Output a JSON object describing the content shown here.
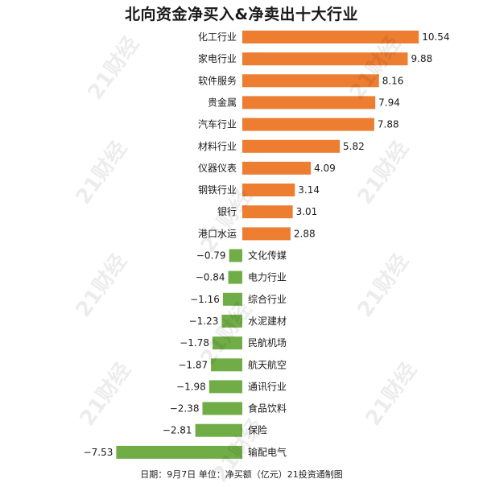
{
  "chart_data": {
    "type": "bar",
    "orientation": "horizontal",
    "title": "北向资金净买入&净卖出十大行业",
    "categories": [
      "化工行业",
      "家电行业",
      "软件服务",
      "贵金属",
      "汽车行业",
      "材料行业",
      "仪器仪表",
      "钢铁行业",
      "银行",
      "港口水运",
      "文化传媒",
      "电力行业",
      "综合行业",
      "水泥建材",
      "民航机场",
      "航天航空",
      "通讯行业",
      "食品饮料",
      "保险",
      "输配电气"
    ],
    "values": [
      10.54,
      9.88,
      8.16,
      7.94,
      7.88,
      5.82,
      4.09,
      3.14,
      3.01,
      2.88,
      -0.79,
      -0.84,
      -1.16,
      -1.23,
      -1.78,
      -1.87,
      -1.98,
      -2.38,
      -2.81,
      -7.53
    ],
    "value_labels": [
      "10.54",
      "9.88",
      "8.16",
      "7.94",
      "7.88",
      "5.82",
      "4.09",
      "3.14",
      "3.01",
      "2.88",
      "−0.79",
      "−0.84",
      "−1.16",
      "−1.23",
      "−1.78",
      "−1.87",
      "−1.98",
      "−2.38",
      "−2.81",
      "−7.53"
    ],
    "colors": {
      "positive": "#ED7D31",
      "negative": "#70AD47"
    },
    "xlim": [
      -7.53,
      10.54
    ],
    "footer": "日期：9月7日 单位：净买额（亿元）21投资通制图"
  },
  "watermark": "21财经"
}
